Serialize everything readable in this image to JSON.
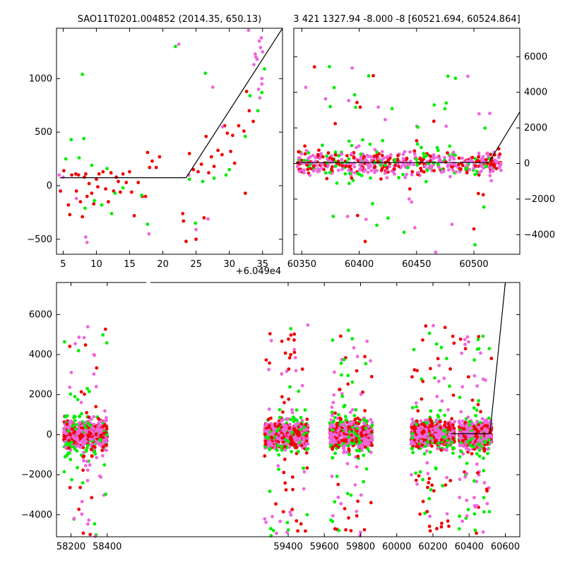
{
  "chart_data": [
    {
      "panel": "top-left",
      "type": "scatter",
      "title": "SAO11T0201.004852 (2014.35, 650.13)",
      "x_offset_label": "+6.049e4",
      "xlim": [
        4,
        38
      ],
      "ylim": [
        -640,
        1470
      ],
      "xticks": [
        5,
        10,
        15,
        20,
        25,
        30,
        35
      ],
      "yticks": [
        -500,
        0,
        500,
        1000
      ],
      "colors": {
        "red": "#ee0000",
        "green": "#00ee00",
        "magenta": "#ee66dd",
        "model": "#000000"
      },
      "model_line": [
        [
          4.5,
          75
        ],
        [
          23.5,
          75
        ],
        [
          38,
          1470
        ]
      ],
      "series": [
        {
          "color": "red",
          "points": [
            [
              4.6,
              -50
            ],
            [
              5.1,
              140
            ],
            [
              5.8,
              -180
            ],
            [
              6.0,
              -270
            ],
            [
              6.3,
              100
            ],
            [
              6.9,
              110
            ],
            [
              7.0,
              -50
            ],
            [
              7.3,
              100
            ],
            [
              7.6,
              -150
            ],
            [
              7.9,
              -290
            ],
            [
              8.2,
              80
            ],
            [
              8.4,
              110
            ],
            [
              8.6,
              -100
            ],
            [
              8.9,
              20
            ],
            [
              9.3,
              -70
            ],
            [
              9.6,
              -170
            ],
            [
              10.0,
              60
            ],
            [
              10.2,
              -10
            ],
            [
              10.4,
              110
            ],
            [
              11.0,
              130
            ],
            [
              11.4,
              -30
            ],
            [
              11.8,
              -150
            ],
            [
              12.2,
              120
            ],
            [
              12.6,
              -50
            ],
            [
              13.0,
              80
            ],
            [
              13.3,
              40
            ],
            [
              13.6,
              -60
            ],
            [
              14.0,
              110
            ],
            [
              14.5,
              30
            ],
            [
              15.0,
              130
            ],
            [
              15.3,
              -60
            ],
            [
              15.7,
              -280
            ],
            [
              16.3,
              30
            ],
            [
              16.9,
              -100
            ],
            [
              17.4,
              -100
            ],
            [
              17.7,
              310
            ],
            [
              18.0,
              170
            ],
            [
              18.4,
              230
            ],
            [
              19.0,
              170
            ],
            [
              19.5,
              270
            ],
            [
              23.0,
              -260
            ],
            [
              23.1,
              -330
            ],
            [
              23.5,
              -520
            ],
            [
              24.0,
              300
            ],
            [
              24.6,
              150
            ],
            [
              25.0,
              -500
            ],
            [
              25.3,
              130
            ],
            [
              25.8,
              200
            ],
            [
              26.2,
              -300
            ],
            [
              26.5,
              460
            ],
            [
              26.9,
              120
            ],
            [
              27.3,
              270
            ],
            [
              27.7,
              180
            ],
            [
              28.3,
              330
            ],
            [
              28.9,
              290
            ],
            [
              29.3,
              560
            ],
            [
              29.7,
              490
            ],
            [
              30.2,
              320
            ],
            [
              30.5,
              470
            ],
            [
              30.8,
              210
            ],
            [
              31.4,
              560
            ],
            [
              32.2,
              510
            ],
            [
              32.4,
              -70
            ],
            [
              32.6,
              880
            ],
            [
              33.0,
              700
            ],
            [
              33.6,
              600
            ]
          ]
        },
        {
          "color": "green",
          "points": [
            [
              5.4,
              250
            ],
            [
              6.2,
              430
            ],
            [
              7.4,
              260
            ],
            [
              7.9,
              1040
            ],
            [
              8.1,
              440
            ],
            [
              8.3,
              -210
            ],
            [
              9.3,
              190
            ],
            [
              9.7,
              -140
            ],
            [
              10.8,
              -180
            ],
            [
              11.6,
              160
            ],
            [
              12.3,
              -260
            ],
            [
              12.8,
              -70
            ],
            [
              14.0,
              -20
            ],
            [
              16.8,
              -90
            ],
            [
              17.7,
              -360
            ],
            [
              21.9,
              1300
            ],
            [
              24.9,
              -350
            ],
            [
              24.0,
              60
            ],
            [
              26.0,
              40
            ],
            [
              26.4,
              1050
            ],
            [
              27.7,
              70
            ],
            [
              29.5,
              100
            ],
            [
              30.0,
              150
            ],
            [
              32.4,
              460
            ],
            [
              33.1,
              840
            ],
            [
              34.3,
              700
            ],
            [
              34.9,
              870
            ],
            [
              35.3,
              1090
            ]
          ]
        },
        {
          "color": "magenta",
          "points": [
            [
              4.4,
              100
            ],
            [
              5.0,
              80
            ],
            [
              7.0,
              -120
            ],
            [
              8.4,
              -480
            ],
            [
              8.6,
              -530
            ],
            [
              17.9,
              -450
            ],
            [
              22.4,
              1320
            ],
            [
              23.9,
              100
            ],
            [
              25.0,
              -410
            ],
            [
              26.8,
              -310
            ],
            [
              27.5,
              920
            ],
            [
              29.0,
              550
            ],
            [
              32.9,
              1450
            ],
            [
              33.7,
              1130
            ],
            [
              34.0,
              1200
            ],
            [
              34.5,
              1350
            ],
            [
              34.7,
              1290
            ],
            [
              34.9,
              1000
            ],
            [
              34.4,
              900
            ],
            [
              34.6,
              820
            ],
            [
              34.9,
              950
            ],
            [
              33.9,
              1230
            ],
            [
              34.2,
              1180
            ],
            [
              34.8,
              1380
            ],
            [
              35.0,
              1250
            ]
          ]
        }
      ]
    },
    {
      "panel": "top-right",
      "type": "scatter",
      "title": "3 421 1327.94 -8.000 -8 [60521.694, 60524.864]",
      "xlim": [
        60343,
        60540
      ],
      "ylim": [
        -5100,
        7600
      ],
      "xticks": [
        60350,
        60400,
        60450,
        60500
      ],
      "yticks": [
        -4000,
        -2000,
        0,
        2000,
        4000,
        6000
      ],
      "model_line": [
        [
          60345,
          50
        ],
        [
          60513,
          50
        ],
        [
          60540,
          2900
        ]
      ],
      "colors": {
        "red": "#ee0000",
        "green": "#00ee00",
        "magenta": "#ee66dd",
        "model": "#000000"
      }
    },
    {
      "panel": "bottom",
      "type": "scatter",
      "xlim": [
        58120,
        60680
      ],
      "ylim": [
        -5100,
        7600
      ],
      "xticks": [
        58200,
        58400,
        59400,
        59600,
        59800,
        60000,
        60200,
        60400,
        60600
      ],
      "yticks": [
        -4000,
        -2000,
        0,
        2000,
        4000,
        6000
      ],
      "segments": [
        [
          58160,
          58400
        ],
        [
          59270,
          59510
        ],
        [
          59630,
          59865
        ],
        [
          60080,
          60320
        ],
        [
          60345,
          60524
        ]
      ],
      "model_line": [
        [
          60300,
          50
        ],
        [
          60515,
          50
        ],
        [
          60600,
          7600
        ]
      ],
      "colors": {
        "red": "#ee0000",
        "green": "#00ee00",
        "magenta": "#ee66dd",
        "model": "#000000"
      }
    }
  ]
}
